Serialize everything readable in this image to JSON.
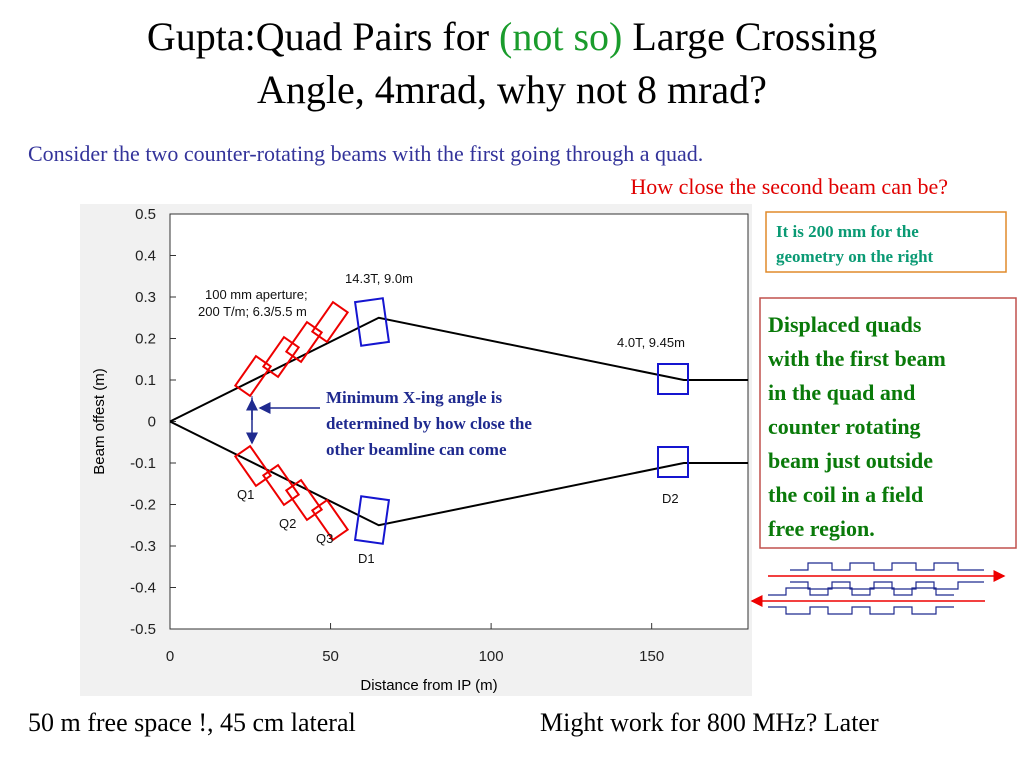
{
  "title_line1": [
    "Gupta:Quad Pairs for",
    "(not so)",
    "Large Crossing"
  ],
  "title_line2": "Angle, 4mrad, why not 8 mrad?",
  "subtitle": "Consider the two counter-rotating beams with the first going through a quad.",
  "question": "How close the second beam can be?",
  "note_box": [
    "It is 200 mm for the",
    "geometry on the right"
  ],
  "explanation_box": [
    "Displaced quads",
    "with the first beam",
    "in the quad and",
    "counter rotating",
    "beam just outside",
    "the coil in a field",
    "free region."
  ],
  "footer_left": "50 m free space !, 45 cm lateral",
  "footer_right": "Might work for 800 MHz? Later",
  "chart_data": {
    "type": "line",
    "x_label": "Distance from IP (m)",
    "y_label": "Beam offest (m)",
    "x": [
      0,
      65,
      160,
      180
    ],
    "series": [
      {
        "color": "#000000",
        "values": [
          0,
          0.25,
          0.1,
          0.1
        ]
      },
      {
        "color": "#000000",
        "values": [
          0,
          -0.25,
          -0.1,
          -0.1
        ]
      }
    ],
    "xlim": [
      0,
      180
    ],
    "ylim": [
      -0.5,
      0.5
    ],
    "xticks": [
      0,
      50,
      100,
      150
    ],
    "yticks": [
      0.5,
      0.4,
      0.3,
      0.2,
      0.1,
      0,
      -0.1,
      -0.2,
      -0.3,
      -0.4,
      -0.5
    ],
    "annotations": {
      "aperture": [
        "100 mm aperture;",
        "200 T/m; 6.3/5.5 m"
      ],
      "d1_spec": "14.3T, 9.0m",
      "d2_spec": "4.0T, 9.45m",
      "q1": "Q1",
      "q2": "Q2",
      "q3": "Q3",
      "d1": "D1",
      "d2": "D2",
      "crossing": [
        "Minimum X-ing angle is",
        "determined by how close the",
        "other beamline can come"
      ]
    }
  }
}
